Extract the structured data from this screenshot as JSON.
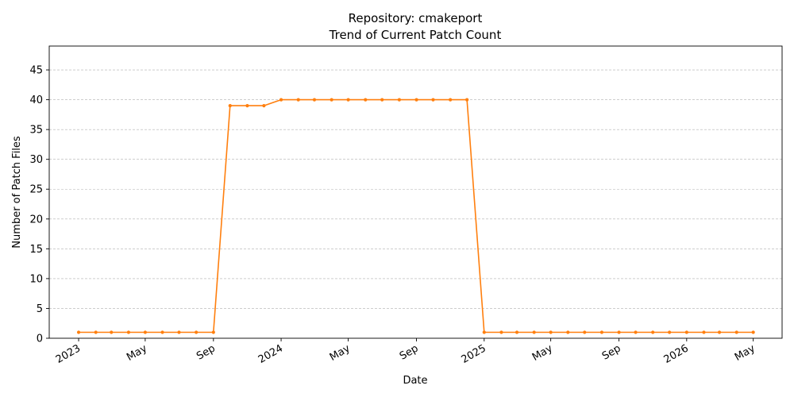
{
  "chart_data": {
    "type": "line",
    "title": "Repository: cmakeport",
    "subtitle": "Trend of Current Patch Count",
    "xlabel": "Date",
    "ylabel": "Number of Patch Files",
    "ylim": [
      0,
      49
    ],
    "xlim": [
      "2022-11-09",
      "2026-06-22"
    ],
    "grid": "horizontal dashed",
    "line_color": "#ff7f0e",
    "y_ticks": [
      0,
      5,
      10,
      15,
      20,
      25,
      30,
      35,
      40,
      45
    ],
    "x_ticks": [
      {
        "date": "2023-01-01",
        "label": "2023"
      },
      {
        "date": "2023-05-01",
        "label": "May"
      },
      {
        "date": "2023-09-01",
        "label": "Sep"
      },
      {
        "date": "2024-01-01",
        "label": "2024"
      },
      {
        "date": "2024-05-01",
        "label": "May"
      },
      {
        "date": "2024-09-01",
        "label": "Sep"
      },
      {
        "date": "2025-01-01",
        "label": "2025"
      },
      {
        "date": "2025-05-01",
        "label": "May"
      },
      {
        "date": "2025-09-01",
        "label": "Sep"
      },
      {
        "date": "2026-01-01",
        "label": "2026"
      },
      {
        "date": "2026-05-01",
        "label": "May"
      }
    ],
    "series": [
      {
        "x": [
          "2023-01-01",
          "2023-02-01",
          "2023-03-01",
          "2023-04-01",
          "2023-05-01",
          "2023-06-01",
          "2023-07-01",
          "2023-08-01",
          "2023-09-01",
          "2023-10-01",
          "2023-11-01",
          "2023-12-01",
          "2024-01-01",
          "2024-02-01",
          "2024-03-01",
          "2024-04-01",
          "2024-05-01",
          "2024-06-01",
          "2024-07-01",
          "2024-08-01",
          "2024-09-01",
          "2024-10-01",
          "2024-11-01",
          "2024-12-01",
          "2025-01-01",
          "2025-02-01",
          "2025-03-01",
          "2025-04-01",
          "2025-05-01",
          "2025-06-01",
          "2025-07-01",
          "2025-08-01",
          "2025-09-01",
          "2025-10-01",
          "2025-11-01",
          "2025-12-01",
          "2026-01-01",
          "2026-02-01",
          "2026-03-01",
          "2026-04-01",
          "2026-05-01"
        ],
        "values": [
          1,
          1,
          1,
          1,
          1,
          1,
          1,
          1,
          1,
          39,
          39,
          39,
          40,
          40,
          40,
          40,
          40,
          40,
          40,
          40,
          40,
          40,
          40,
          40,
          1,
          1,
          1,
          1,
          1,
          1,
          1,
          1,
          1,
          1,
          1,
          1,
          1,
          1,
          1,
          1,
          1
        ]
      }
    ]
  }
}
